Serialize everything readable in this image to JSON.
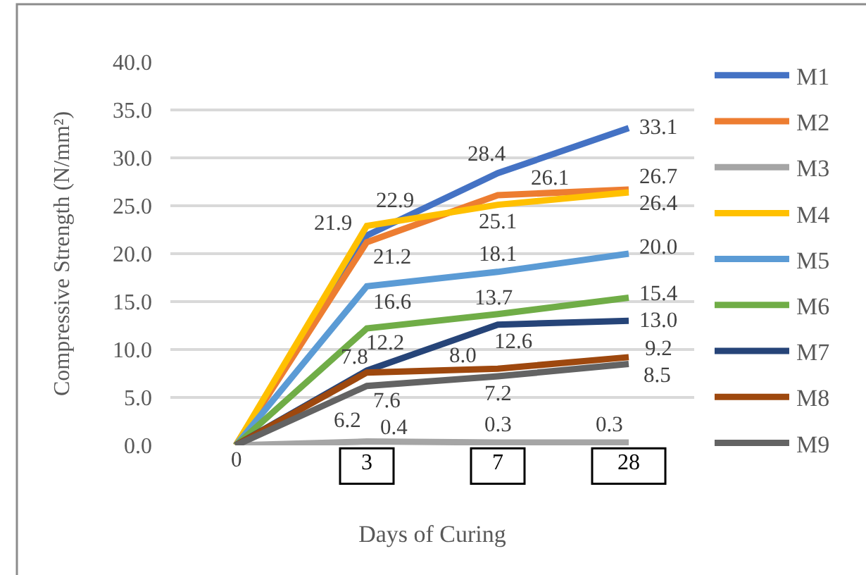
{
  "chart_data": {
    "type": "line",
    "xlabel": "Days of Curing",
    "ylabel": "Compressive Strength (N/mm²)",
    "categories": [
      null,
      "3",
      "7",
      "28"
    ],
    "ylim": [
      0,
      40
    ],
    "yticks": [
      {
        "value": 0,
        "label": "0.0"
      },
      {
        "value": 5,
        "label": "5.0"
      },
      {
        "value": 10,
        "label": "10.0"
      },
      {
        "value": 15,
        "label": "15.0"
      },
      {
        "value": 20,
        "label": "20.0"
      },
      {
        "value": 25,
        "label": "25.0"
      },
      {
        "value": 30,
        "label": "30.0"
      },
      {
        "value": 35,
        "label": "35.0"
      },
      {
        "value": 40,
        "label": "40.0"
      }
    ],
    "grid": "y",
    "legend": "right",
    "series": [
      {
        "name": "M1",
        "color": "#4472c4",
        "values": [
          0,
          21.9,
          28.4,
          33.1
        ],
        "value_labels": [
          null,
          "21.9",
          "28.4",
          "33.1"
        ]
      },
      {
        "name": "M2",
        "color": "#ed7d31",
        "values": [
          0,
          21.2,
          26.1,
          26.7
        ],
        "value_labels": [
          null,
          "21.2",
          "26.1",
          "26.7"
        ]
      },
      {
        "name": "M3",
        "color": "#a5a5a5",
        "values": [
          0,
          0.4,
          0.3,
          0.3
        ],
        "value_labels": [
          null,
          "0.4",
          "0.3",
          "0.3"
        ]
      },
      {
        "name": "M4",
        "color": "#ffc000",
        "values": [
          0,
          22.9,
          25.1,
          26.4
        ],
        "value_labels": [
          null,
          "22.9",
          "25.1",
          "26.4"
        ]
      },
      {
        "name": "M5",
        "color": "#5b9bd5",
        "values": [
          0,
          16.6,
          18.1,
          20.0
        ],
        "value_labels": [
          null,
          "16.6",
          "18.1",
          "20.0"
        ]
      },
      {
        "name": "M6",
        "color": "#70ad47",
        "values": [
          0,
          12.2,
          13.7,
          15.4
        ],
        "value_labels": [
          null,
          "12.2",
          "13.7",
          "15.4"
        ]
      },
      {
        "name": "M7",
        "color": "#264478",
        "values": [
          0,
          7.8,
          12.6,
          13.0
        ],
        "value_labels": [
          null,
          "7.8",
          "12.6",
          "13.0"
        ]
      },
      {
        "name": "M8",
        "color": "#9e480e",
        "values": [
          0,
          7.6,
          8.0,
          9.2
        ],
        "value_labels": [
          null,
          "7.6",
          "8.0",
          "9.2"
        ]
      },
      {
        "name": "M9",
        "color": "#636363",
        "values": [
          0,
          6.2,
          7.2,
          8.5
        ],
        "value_labels": [
          "0",
          "6.2",
          "7.2",
          "8.5"
        ]
      }
    ]
  }
}
